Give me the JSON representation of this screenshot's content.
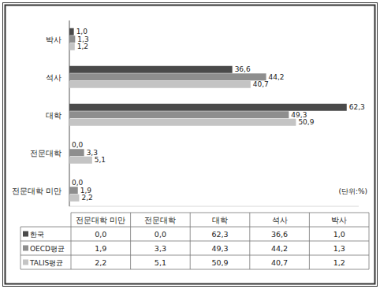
{
  "chart_data": {
    "type": "bar",
    "orientation": "horizontal",
    "categories": [
      "전문대학 미만",
      "전문대학",
      "대학",
      "석사",
      "박사"
    ],
    "series": [
      {
        "name": "한국",
        "color": "#4a4a4a",
        "values": [
          0.0,
          0.0,
          62.3,
          36.6,
          1.0
        ],
        "value_labels": [
          "0,0",
          "0,0",
          "62,3",
          "36,6",
          "1,0"
        ]
      },
      {
        "name": "OECD평균",
        "color": "#8e8e8e",
        "values": [
          1.9,
          3.3,
          49.3,
          44.2,
          1.3
        ],
        "value_labels": [
          "1,9",
          "3,3",
          "49,3",
          "44,2",
          "1,3"
        ]
      },
      {
        "name": "TALIS평균",
        "color": "#c4c4c4",
        "values": [
          2.2,
          5.1,
          50.9,
          40.7,
          1.2
        ],
        "value_labels": [
          "2,2",
          "5,1",
          "50,9",
          "40,7",
          "1,2"
        ]
      }
    ],
    "xlim": [
      0,
      65
    ],
    "tick_labels": false,
    "grid": false,
    "data_labels": true,
    "annotations": [
      "(단위:%)"
    ]
  }
}
